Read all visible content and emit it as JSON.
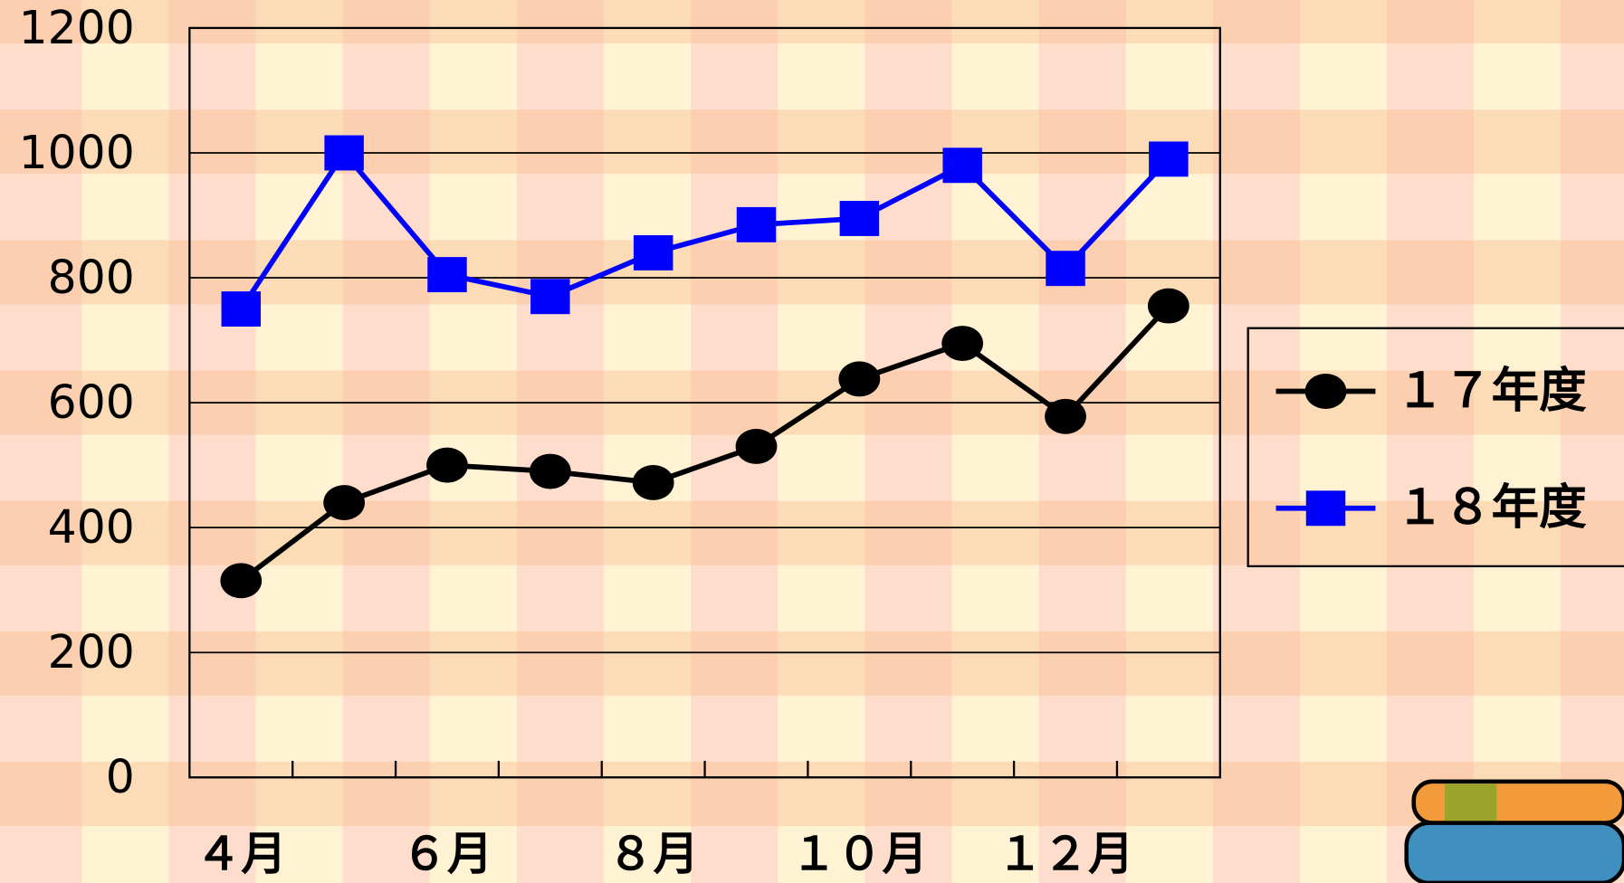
{
  "chart_data": {
    "type": "line",
    "categories": [
      "４月",
      null,
      "６月",
      null,
      "８月",
      null,
      "１０月",
      null,
      "１２月",
      null
    ],
    "series": [
      {
        "name": "１７年度",
        "color": "#000000",
        "marker": "circle",
        "values": [
          315,
          440,
          500,
          490,
          472,
          530,
          638,
          695,
          578,
          755
        ]
      },
      {
        "name": "１８年度",
        "color": "#0000ff",
        "marker": "square",
        "values": [
          750,
          1000,
          805,
          770,
          840,
          885,
          895,
          980,
          815,
          990
        ]
      }
    ],
    "ylim": [
      0,
      1200
    ],
    "yticks": [
      0,
      200,
      400,
      600,
      800,
      1000,
      1200
    ],
    "grid": true,
    "legend": "right"
  }
}
